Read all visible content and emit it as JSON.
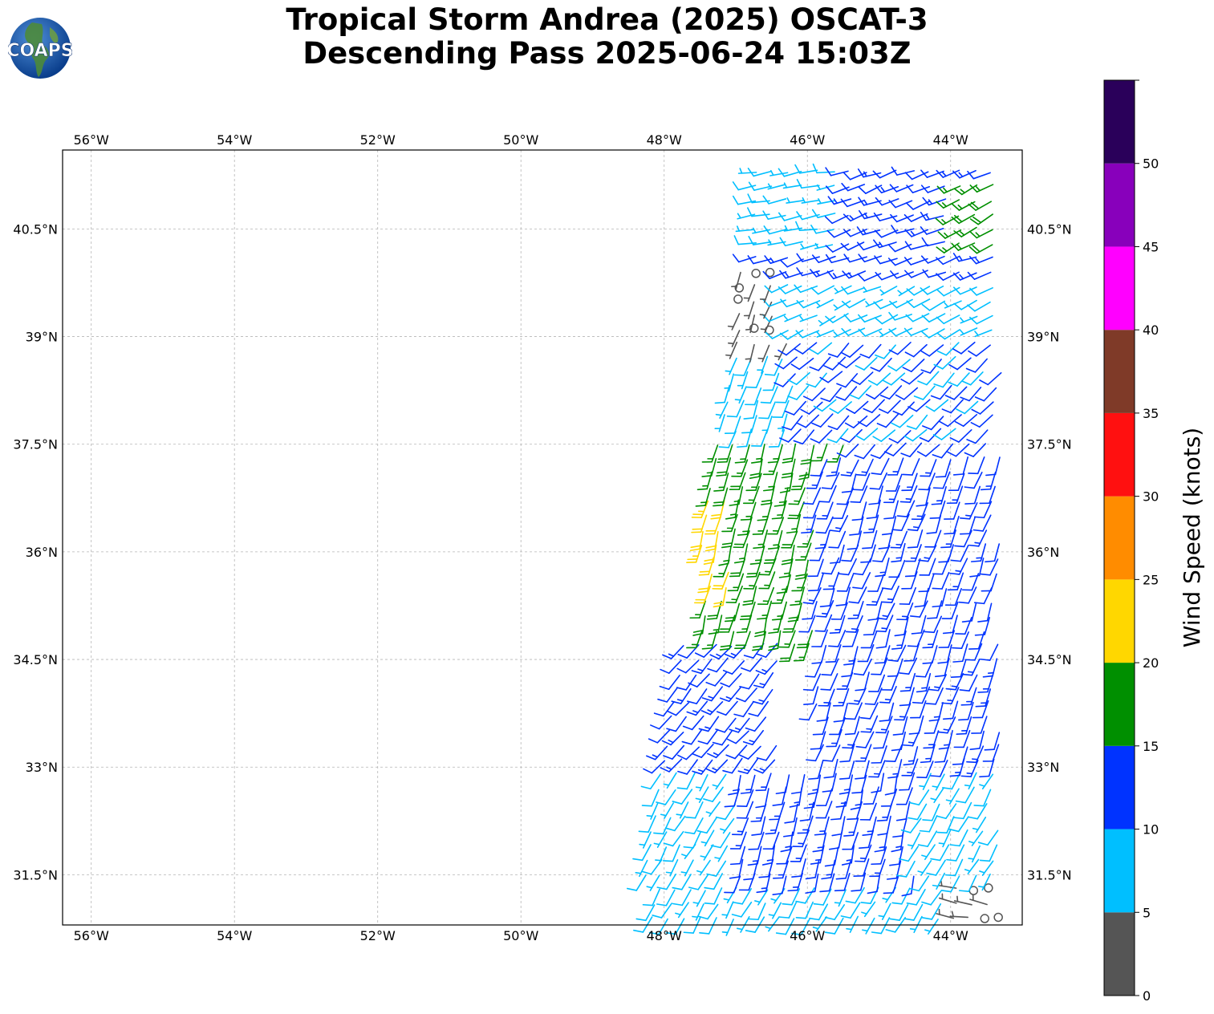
{
  "title": {
    "line1": "Tropical Storm Andrea (2025) OSCAT-3",
    "line2": "Descending Pass 2025-06-24 15:03Z"
  },
  "logo": {
    "text": "COAPS",
    "icon": "globe-icon"
  },
  "map": {
    "lon_range": [
      -56.4,
      -43.0
    ],
    "lat_range": [
      30.8,
      41.6
    ],
    "lon_ticks": [
      {
        "value": -56,
        "label": "56°W"
      },
      {
        "value": -54,
        "label": "54°W"
      },
      {
        "value": -52,
        "label": "52°W"
      },
      {
        "value": -50,
        "label": "50°W"
      },
      {
        "value": -48,
        "label": "48°W"
      },
      {
        "value": -46,
        "label": "46°W"
      },
      {
        "value": -44,
        "label": "44°W"
      }
    ],
    "lat_ticks": [
      {
        "value": 40.5,
        "label": "40.5°N"
      },
      {
        "value": 39,
        "label": "39°N"
      },
      {
        "value": 37.5,
        "label": "37.5°N"
      },
      {
        "value": 36,
        "label": "36°N"
      },
      {
        "value": 34.5,
        "label": "34.5°N"
      },
      {
        "value": 33,
        "label": "33°N"
      },
      {
        "value": 31.5,
        "label": "31.5°N"
      }
    ],
    "grid": true
  },
  "colorbar": {
    "label": "Wind Speed (knots)",
    "bins": [
      {
        "min": 0,
        "max": 5,
        "color": "#555555"
      },
      {
        "min": 5,
        "max": 10,
        "color": "#00bfff"
      },
      {
        "min": 10,
        "max": 15,
        "color": "#0033ff"
      },
      {
        "min": 15,
        "max": 20,
        "color": "#008f00"
      },
      {
        "min": 20,
        "max": 25,
        "color": "#ffd700"
      },
      {
        "min": 25,
        "max": 30,
        "color": "#ff8c00"
      },
      {
        "min": 30,
        "max": 35,
        "color": "#ff1010"
      },
      {
        "min": 35,
        "max": 40,
        "color": "#7f3a28"
      },
      {
        "min": 40,
        "max": 45,
        "color": "#ff00ff"
      },
      {
        "min": 45,
        "max": 50,
        "color": "#8800bb"
      },
      {
        "min": 50,
        "max": 55,
        "color": "#2a005a"
      }
    ],
    "ticks": [
      {
        "value": 0,
        "label": "0"
      },
      {
        "value": 5,
        "label": "5"
      },
      {
        "value": 10,
        "label": "10"
      },
      {
        "value": 15,
        "label": "15"
      },
      {
        "value": 20,
        "label": "20"
      },
      {
        "value": 25,
        "label": "25"
      },
      {
        "value": 30,
        "label": "30"
      },
      {
        "value": 35,
        "label": "35"
      },
      {
        "value": 40,
        "label": "40"
      },
      {
        "value": 45,
        "label": "45"
      },
      {
        "value": 50,
        "label": "50"
      }
    ]
  },
  "wind_field": {
    "description_of_values": "speed in knots, direction in degrees (meteorological, wind from)",
    "regions": [
      {
        "lon": [
          -46.9,
          -43.3
        ],
        "lat": [
          39.9,
          41.5
        ],
        "speed": 12,
        "dir": 250
      },
      {
        "lon": [
          -46.9,
          -45.6
        ],
        "lat": [
          40.3,
          41.5
        ],
        "speed": 8,
        "dir": 260
      },
      {
        "lon": [
          -44.0,
          -43.3
        ],
        "lat": [
          40.2,
          41.3
        ],
        "speed": 17,
        "dir": 240
      },
      {
        "lon": [
          -46.3,
          -43.3
        ],
        "lat": [
          39.1,
          39.9
        ],
        "speed": 8,
        "dir": 245
      },
      {
        "lon": [
          -47.0,
          -46.3
        ],
        "lat": [
          38.3,
          40.0
        ],
        "speed": 3,
        "dir": 200
      },
      {
        "lon": [
          -46.3,
          -43.3
        ],
        "lat": [
          37.4,
          39.1
        ],
        "speed": 11,
        "dir": 225
      },
      {
        "lon": [
          -47.2,
          -46.2
        ],
        "lat": [
          37.4,
          38.8
        ],
        "speed": 8,
        "dir": 200
      },
      {
        "lon": [
          -47.5,
          -45.3
        ],
        "lat": [
          34.6,
          37.6
        ],
        "speed": 17,
        "dir": 195
      },
      {
        "lon": [
          -47.5,
          -47.1
        ],
        "lat": [
          35.5,
          36.8
        ],
        "speed": 22,
        "dir": 195
      },
      {
        "lon": [
          -45.9,
          -43.3
        ],
        "lat": [
          33.0,
          37.4
        ],
        "speed": 12,
        "dir": 200
      },
      {
        "lon": [
          -48.1,
          -46.4
        ],
        "lat": [
          33.0,
          34.8
        ],
        "speed": 12,
        "dir": 220
      },
      {
        "lon": [
          -48.3,
          -43.3
        ],
        "lat": [
          30.9,
          33.0
        ],
        "speed": 8,
        "dir": 210
      },
      {
        "lon": [
          -47.0,
          -44.5
        ],
        "lat": [
          31.3,
          33.0
        ],
        "speed": 12,
        "dir": 195
      },
      {
        "lon": [
          -44.0,
          -43.3
        ],
        "lat": [
          30.9,
          31.4
        ],
        "speed": 3,
        "dir": 280
      }
    ]
  }
}
